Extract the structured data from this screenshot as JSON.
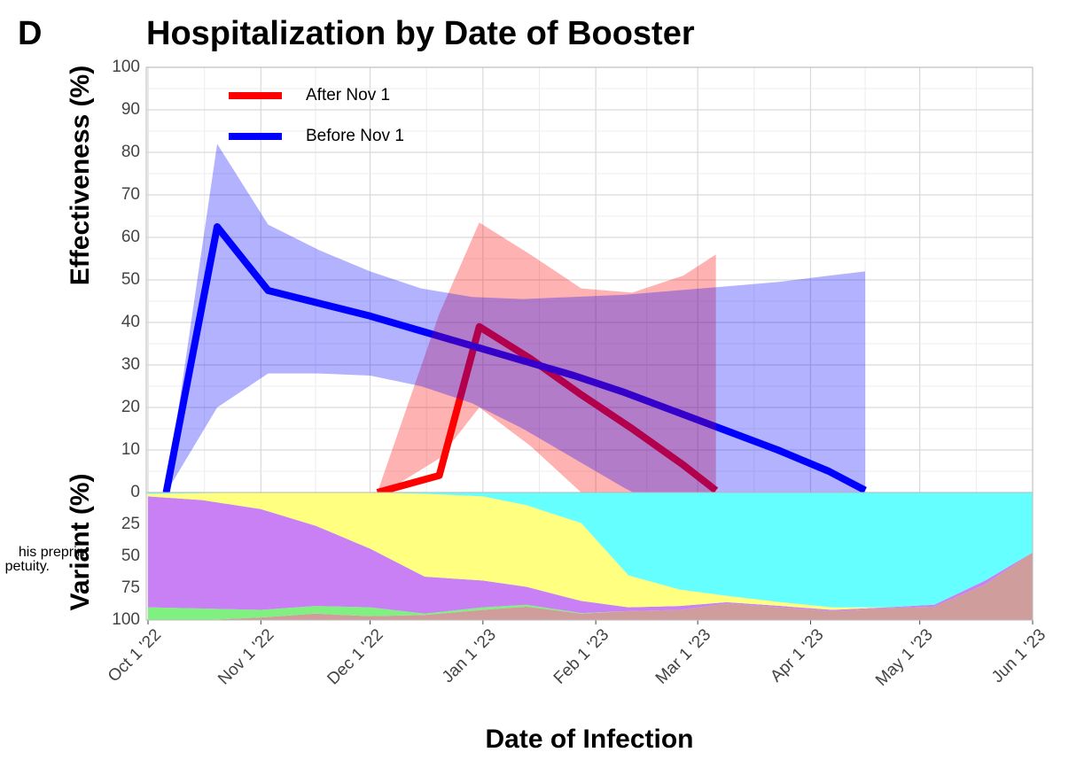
{
  "chart_data": [
    {
      "type": "line",
      "panel_label": "D",
      "title": "Hospitalization by Date of Booster",
      "ylabel": "Effectiveness (%)",
      "ylim": [
        0,
        100
      ],
      "yticks": [
        0,
        10,
        20,
        30,
        40,
        50,
        60,
        70,
        80,
        90,
        100
      ],
      "grid": true,
      "legend": "upper left",
      "annotations": [
        "his preprint",
        "petuity."
      ],
      "series": [
        {
          "name": "After Nov 1",
          "color": "#ff0000",
          "x": [
            "2022-12-03",
            "2022-12-20",
            "2022-12-31",
            "2023-01-14",
            "2023-01-28",
            "2023-02-11",
            "2023-02-25",
            "2023-03-06"
          ],
          "values": [
            0,
            4,
            39,
            31.5,
            23,
            15,
            6.5,
            0.5
          ],
          "upper": [
            0,
            42,
            63.5,
            56,
            48,
            47,
            51,
            56
          ],
          "lower": [
            -1,
            8,
            20,
            11,
            0,
            -3,
            -6,
            -8
          ]
        },
        {
          "name": "Before Nov 1",
          "color": "#0000ff",
          "x": [
            "2022-10-06",
            "2022-10-20",
            "2022-11-03",
            "2022-11-17",
            "2022-12-01",
            "2022-12-15",
            "2022-12-29",
            "2023-01-12",
            "2023-01-26",
            "2023-02-09",
            "2023-02-23",
            "2023-03-09",
            "2023-03-23",
            "2023-04-06",
            "2023-04-16"
          ],
          "values": [
            0,
            62.5,
            47.5,
            44.5,
            41.5,
            38,
            34.5,
            31,
            27.5,
            23.5,
            19,
            14.5,
            10,
            5,
            0.5
          ],
          "upper": [
            0,
            82,
            63,
            57,
            52,
            48,
            46,
            45.5,
            46,
            46.5,
            47.5,
            48.5,
            49.5,
            51,
            52
          ],
          "lower": [
            0,
            20,
            28,
            28,
            27.5,
            25,
            21,
            15,
            8,
            1,
            -5,
            -10,
            -15,
            -20,
            -22
          ]
        }
      ]
    },
    {
      "type": "area",
      "stacked": true,
      "inverted": true,
      "ylabel": "Variant (%)",
      "xlabel": "Date of Infection",
      "ylim": [
        0,
        100
      ],
      "yticks": [
        25,
        50,
        75,
        100
      ],
      "grid": true,
      "xlim": [
        "2022-10-01",
        "2023-06-01"
      ],
      "xticks": [
        {
          "value": "2022-10-01",
          "label": "Oct 1 '22"
        },
        {
          "value": "2022-11-01",
          "label": "Nov 1 '22"
        },
        {
          "value": "2022-12-01",
          "label": "Dec 1 '22"
        },
        {
          "value": "2023-01-01",
          "label": "Jan 1 '23"
        },
        {
          "value": "2023-02-01",
          "label": "Feb 1 '23"
        },
        {
          "value": "2023-03-01",
          "label": "Mar 1 '23"
        },
        {
          "value": "2023-04-01",
          "label": "Apr 1 '23"
        },
        {
          "value": "2023-05-01",
          "label": "May 1 '23"
        },
        {
          "value": "2023-06-01",
          "label": "Jun 1 '23"
        }
      ],
      "x": [
        "2022-10-01",
        "2022-10-16",
        "2022-11-01",
        "2022-11-16",
        "2022-12-01",
        "2022-12-16",
        "2023-01-01",
        "2023-01-13",
        "2023-01-28",
        "2023-02-10",
        "2023-02-24",
        "2023-03-09",
        "2023-03-24",
        "2023-04-07",
        "2023-04-22",
        "2023-05-05",
        "2023-05-19",
        "2023-06-01"
      ],
      "series": [
        {
          "color": "#cf9d9b",
          "values": [
            0,
            0,
            2,
            5,
            3,
            4,
            8,
            10.5,
            5,
            7,
            8,
            13,
            10,
            7,
            9.5,
            10.5,
            28,
            53
          ]
        },
        {
          "color": "#80f080",
          "values": [
            10,
            9,
            6,
            6,
            7,
            1,
            2,
            1.5,
            0.5,
            0,
            0,
            0,
            0,
            0,
            0,
            0,
            0,
            0
          ]
        },
        {
          "color": "#c880f4",
          "values": [
            87,
            85,
            79,
            63,
            46,
            29,
            21,
            14,
            9.5,
            3,
            3,
            1,
            1,
            1,
            0.5,
            1.5,
            3,
            0
          ]
        },
        {
          "color": "#ffff80",
          "values": [
            2,
            5.5,
            13,
            26,
            44,
            65,
            66,
            64,
            61,
            25,
            13,
            5,
            3,
            2,
            0,
            0,
            0,
            0
          ]
        },
        {
          "color": "#66ffff",
          "values": [
            1,
            0.5,
            0,
            0,
            0,
            1,
            3,
            10,
            24,
            65,
            76,
            81,
            86,
            90,
            90,
            88,
            69,
            47
          ]
        }
      ]
    }
  ]
}
